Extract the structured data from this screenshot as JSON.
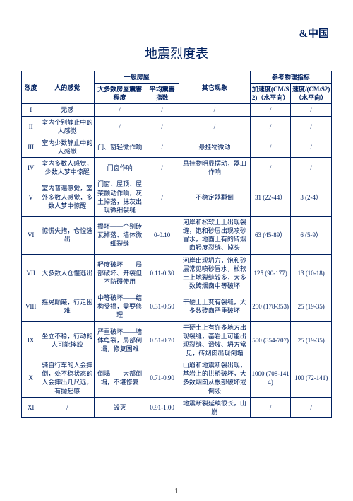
{
  "corner_mark": "&中国",
  "title": "地震烈度表",
  "page_number": "1",
  "headers": {
    "intensity": "烈度",
    "feeling": "人的感觉",
    "house": "一般房屋",
    "house_damage": "大多数房屋震害程度",
    "damage_index": "平均震害指数",
    "other": "其它现象",
    "ref": "参考物理指标",
    "accel": "加速度(CM/S2)（水平向）",
    "vel": "速度/(CM/S2)（水平向）"
  },
  "rows": [
    {
      "i": "I",
      "f": "无感",
      "d": "/",
      "x": "/",
      "o": "/",
      "a": "/",
      "v": "/"
    },
    {
      "i": "II",
      "f": "室内个别静止中的人感觉",
      "d": "/",
      "x": "/",
      "o": "/",
      "a": "/",
      "v": "/"
    },
    {
      "i": "III",
      "f": "室内少数静止中的人感觉",
      "d": "门、窗轻微作响",
      "x": "/",
      "o": "悬挂物微动",
      "a": "/",
      "v": "/"
    },
    {
      "i": "IV",
      "f": "室内多数人感觉，少数人梦中惊醒",
      "d": "门窗作响",
      "x": "/",
      "o": "悬挂物明显摆动，器皿作响",
      "a": "/",
      "v": "/"
    },
    {
      "i": "V",
      "f": "室内普遍感觉，室外多数人感觉，多数人梦中惊醒",
      "d": "门窗、屋顶、屋架颤动作响，灰土掉落，抹灰出现微细裂缝",
      "x": "/",
      "o": "不稳定器翻倒",
      "a": "31 (22-44）",
      "v": "3 (2-4）"
    },
    {
      "i": "VI",
      "f": "惊慌失措，仓惶逃出",
      "d": "损坏——个别砖瓦掉落、墙体微细裂缝",
      "x": "0-0.10",
      "o": "河岸和松软土上出现裂缝，饱和砂层出现喷砂冒水，地面上有的砖烟囱轻度裂缝、掉头",
      "a": "63 (45-89）",
      "v": "6 (5-9）"
    },
    {
      "i": "VII",
      "f": "大多数人仓惶逃出",
      "d": "轻度破坏——局部破坏、开裂但不防碍使用",
      "x": "0.11-0.30",
      "o": "河岸出现坍方，饱和砂层常见喷砂冒水，松软土上地裂缝较多，大多数砖烟囱中等破坏",
      "a": "125 (90-177)",
      "v": "13 (10-18)"
    },
    {
      "i": "VIII",
      "f": "摇晃颠簸，行走困难",
      "d": "中等破坏——结构受损，需要修理",
      "x": "0.31-0.50",
      "o": "干硬土上变有裂缝，大多数砖囱严重破坏",
      "a": "250 (178-353)",
      "v": "25 (19-35)"
    },
    {
      "i": "IX",
      "f": "坐立不稳，行动的人可能摔跤",
      "d": "严重破坏——墙体龟裂，局部倒塌，修复困难",
      "x": "0.51-0.70",
      "o": "干硬土上有许多地方出现裂缝，基岩上可能出现裂缝、滑坡、坍方常见，砖烟囱出现倒塌",
      "a": "500 (354-707)",
      "v": "25 (19-35)"
    },
    {
      "i": "X",
      "f": "骑自行车的人会摔倒，处不稳状态的人会摔出几尺远，有抛起感",
      "d": "倒塌——大部倒塌，不堪修复",
      "x": "0.71-0.90",
      "o": "山崩和地震断裂出现，基岩上的拱桥破坏，大多数烟囱从根部破坏或倒毁",
      "a": "1000 (708-1414)",
      "v": "100 (72-141)"
    },
    {
      "i": "XI",
      "f": "/",
      "d": "毁灭",
      "x": "0.91-1.00",
      "o": "地震断裂延续很长，山崩",
      "a": "/",
      "v": "/"
    }
  ]
}
